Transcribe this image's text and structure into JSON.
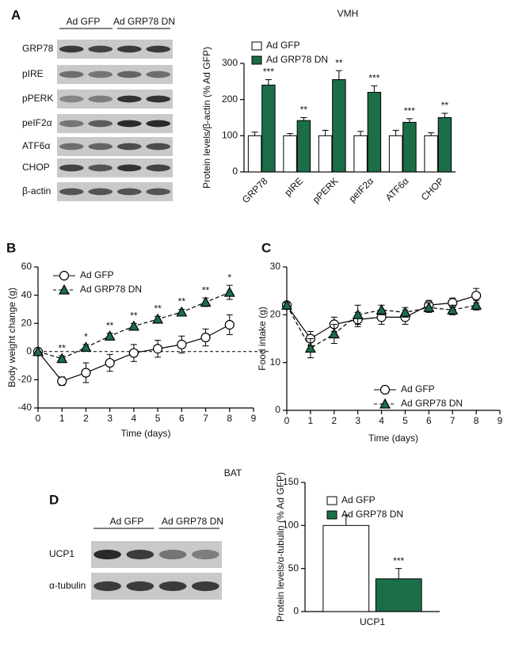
{
  "panel_labels": [
    "A",
    "B",
    "C",
    "D"
  ],
  "blots": [
    {
      "groups": [
        "Ad GFP",
        "Ad GRP78 DN"
      ],
      "rows": [
        "GRP78",
        "pIRE",
        "pPERK",
        "peIF2α",
        "ATF6α",
        "CHOP",
        "β-actin"
      ]
    },
    {
      "groups": [
        "Ad GFP",
        "Ad GRP78 DN"
      ],
      "rows": [
        "UCP1",
        "α-tubulin"
      ]
    }
  ],
  "chart_data": [
    {
      "type": "bar",
      "title": "VMH",
      "ylabel": "Protein levels/β-actin (% Ad GFP)",
      "categories": [
        "GRP78",
        "pIRE",
        "pPERK",
        "peIF2α",
        "ATF6α",
        "CHOP"
      ],
      "ylim": [
        0,
        300
      ],
      "yticks": [
        0,
        100,
        200,
        300
      ],
      "legend": "upper left",
      "series": [
        {
          "name": "Ad GFP",
          "color": "#ffffff",
          "values": [
            100,
            100,
            100,
            100,
            100,
            100
          ],
          "errors": [
            10,
            6,
            15,
            12,
            15,
            8
          ],
          "labels": [
            null,
            null,
            null,
            null,
            null,
            null
          ]
        },
        {
          "name": "Ad GRP78 DN",
          "color": "#1b6e48",
          "values": [
            240,
            142,
            255,
            220,
            137,
            150
          ],
          "errors": [
            15,
            8,
            25,
            18,
            10,
            12
          ],
          "labels": [
            "***",
            "**",
            "**",
            "***",
            "***",
            "**"
          ]
        }
      ]
    },
    {
      "type": "line",
      "xlabel": "Time (days)",
      "ylabel": "Body weight change (g)",
      "x": [
        0,
        1,
        2,
        3,
        4,
        5,
        6,
        7,
        8
      ],
      "xlim": [
        0,
        9
      ],
      "xticks": [
        0,
        1,
        2,
        3,
        4,
        5,
        6,
        7,
        8,
        9
      ],
      "ylim": [
        -40,
        60
      ],
      "yticks": [
        -40,
        -20,
        0,
        20,
        40,
        60
      ],
      "zero_line": true,
      "legend": "upper left",
      "series": [
        {
          "name": "Ad GFP",
          "color": "#ffffff",
          "marker": "circle",
          "dashed": false,
          "values": [
            0,
            -21,
            -15,
            -8,
            -1,
            2,
            5,
            10,
            19
          ],
          "errors": [
            0,
            3,
            7,
            6,
            6,
            6,
            6,
            6,
            7
          ],
          "labels": [
            null,
            null,
            null,
            null,
            null,
            null,
            null,
            null,
            null
          ]
        },
        {
          "name": "Ad GRP78 DN",
          "color": "#1b6e48",
          "marker": "triangle",
          "dashed": true,
          "values": [
            0,
            -5,
            3,
            11,
            18,
            23,
            28,
            35,
            42
          ],
          "errors": [
            0,
            2,
            2,
            2,
            2,
            2,
            2,
            3,
            5
          ],
          "labels": [
            null,
            "**",
            "*",
            "**",
            "**",
            "**",
            "**",
            "**",
            "*"
          ]
        }
      ]
    },
    {
      "type": "line",
      "xlabel": "Time (days)",
      "ylabel": "Food intake (g)",
      "x": [
        0,
        1,
        2,
        3,
        4,
        5,
        6,
        7,
        8
      ],
      "xlim": [
        0,
        9
      ],
      "xticks": [
        0,
        1,
        2,
        3,
        4,
        5,
        6,
        7,
        8,
        9
      ],
      "ylim": [
        0,
        30
      ],
      "yticks": [
        0,
        10,
        20,
        30
      ],
      "zero_line": false,
      "legend": "lower right",
      "series": [
        {
          "name": "Ad GFP",
          "color": "#ffffff",
          "marker": "circle",
          "dashed": false,
          "values": [
            22,
            15,
            18,
            19,
            19.5,
            19.5,
            22,
            22.5,
            24
          ],
          "errors": [
            0.5,
            1.5,
            1.5,
            1.5,
            1.5,
            1.5,
            1,
            1,
            1.5
          ],
          "labels": [
            null,
            null,
            null,
            null,
            null,
            null,
            null,
            null,
            null
          ]
        },
        {
          "name": "Ad GRP78 DN",
          "color": "#1b6e48",
          "marker": "triangle",
          "dashed": true,
          "values": [
            22,
            13,
            16,
            20,
            21,
            20.5,
            21.5,
            21,
            22
          ],
          "errors": [
            0.5,
            2,
            2,
            2,
            1,
            1,
            1,
            1,
            1
          ],
          "labels": [
            null,
            null,
            null,
            null,
            null,
            null,
            null,
            null,
            null
          ]
        }
      ]
    },
    {
      "type": "bar",
      "title": "BAT",
      "ylabel": "Protein levels/α-tubulin (% Ad GFP)",
      "categories": [
        "UCP1"
      ],
      "ylim": [
        0,
        150
      ],
      "yticks": [
        0,
        50,
        100,
        150
      ],
      "legend": "upper left",
      "series": [
        {
          "name": "Ad GFP",
          "color": "#ffffff",
          "values": [
            100
          ],
          "errors": [
            12
          ],
          "labels": [
            null
          ]
        },
        {
          "name": "Ad GRP78 DN",
          "color": "#1b6e48",
          "values": [
            38
          ],
          "errors": [
            12
          ],
          "labels": [
            "***"
          ]
        }
      ]
    }
  ]
}
